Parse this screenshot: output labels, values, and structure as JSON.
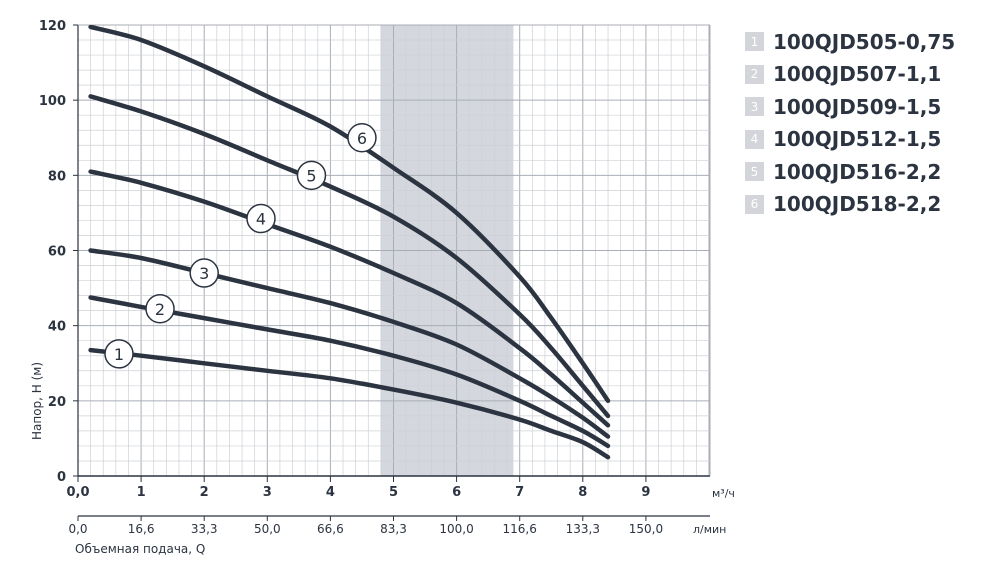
{
  "chart_data": {
    "type": "line",
    "ylabel": "Напор, H (м)",
    "xlabel_secondary": "Объемная подача, Q",
    "x_unit": "м³/ч",
    "x_unit_secondary": "л/мин",
    "xlim": [
      0,
      10
    ],
    "ylim": [
      0,
      120
    ],
    "x_ticks": [
      "0,0",
      "1",
      "2",
      "3",
      "4",
      "5",
      "6",
      "7",
      "8",
      "9"
    ],
    "x_ticks_secondary": [
      "0,0",
      "16,6",
      "33,3",
      "50,0",
      "66,6",
      "83,3",
      "100,0",
      "116,6",
      "133,3",
      "150,0"
    ],
    "y_ticks": [
      "0",
      "20",
      "40",
      "60",
      "80",
      "100",
      "120"
    ],
    "grid": true,
    "shaded_range": [
      4.8,
      6.9
    ],
    "legend_position": "right",
    "series": [
      {
        "label": "1",
        "name": "100QJD505-0,75",
        "x": [
          0.2,
          1,
          2,
          3,
          4,
          5,
          6,
          7,
          7.5,
          8,
          8.4
        ],
        "y": [
          33.5,
          32,
          30,
          28,
          26,
          23,
          19.5,
          15,
          12,
          9,
          5
        ]
      },
      {
        "label": "2",
        "name": "100QJD507-1,1",
        "x": [
          0.2,
          1,
          2,
          3,
          4,
          5,
          6,
          7,
          7.5,
          8,
          8.4
        ],
        "y": [
          47.5,
          45,
          42,
          39,
          36,
          32,
          27,
          20,
          16,
          12,
          8
        ]
      },
      {
        "label": "3",
        "name": "100QJD509-1,5",
        "x": [
          0.2,
          1,
          2,
          3,
          4,
          5,
          6,
          7,
          7.5,
          8,
          8.4
        ],
        "y": [
          60,
          58,
          54,
          50,
          46,
          41,
          35,
          26,
          21,
          15.5,
          10.5
        ]
      },
      {
        "label": "4",
        "name": "100QJD512-1,5",
        "x": [
          0.2,
          1,
          2,
          3,
          4,
          5,
          6,
          7,
          7.5,
          8,
          8.4
        ],
        "y": [
          81,
          78,
          73,
          67,
          61,
          54,
          46,
          34,
          27,
          19.5,
          13.5
        ]
      },
      {
        "label": "5",
        "name": "100QJD516-2,2",
        "x": [
          0.2,
          1,
          2,
          3,
          4,
          5,
          6,
          7,
          7.5,
          8,
          8.4
        ],
        "y": [
          101,
          97,
          91,
          84,
          77,
          69,
          58,
          43,
          34,
          24,
          16
        ]
      },
      {
        "label": "6",
        "name": "100QJD518-2,2",
        "x": [
          0.2,
          1,
          2,
          3,
          4,
          5,
          6,
          7,
          7.5,
          8,
          8.4
        ],
        "y": [
          119.5,
          116,
          109,
          101,
          93,
          82,
          70,
          53,
          42,
          30,
          20
        ]
      }
    ],
    "markers": [
      {
        "label": "1",
        "x": 0.65,
        "y": 32.5
      },
      {
        "label": "2",
        "x": 1.3,
        "y": 44.5
      },
      {
        "label": "3",
        "x": 2.0,
        "y": 54
      },
      {
        "label": "4",
        "x": 2.9,
        "y": 68.5
      },
      {
        "label": "5",
        "x": 3.7,
        "y": 80
      },
      {
        "label": "6",
        "x": 4.5,
        "y": 90
      }
    ]
  }
}
